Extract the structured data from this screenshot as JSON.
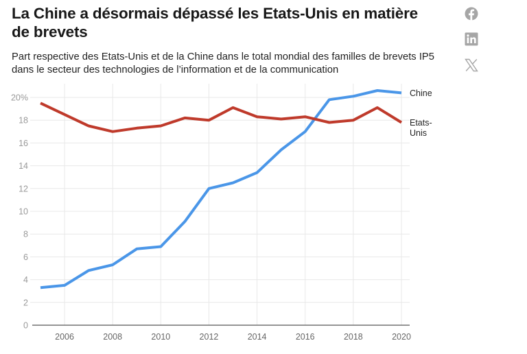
{
  "header": {
    "title": "La Chine a désormais dépassé les Etats-Unis en matière de brevets",
    "subtitle": "Part respective des Etats-Unis et de la Chine dans le total mondial des familles de brevets IP5 dans le secteur des technologies de l’information et de la communication"
  },
  "share": {
    "icons": [
      "facebook-icon",
      "linkedin-icon",
      "x-icon"
    ],
    "color": "#a6a6a6"
  },
  "chart_data": {
    "type": "line",
    "title": "La Chine a désormais dépassé les Etats-Unis en matière de brevets",
    "subtitle": "Part respective des Etats-Unis et de la Chine dans le total mondial des familles de brevets IP5 dans le secteur des technologies de l’information et de la communication",
    "xlabel": "",
    "ylabel": "",
    "x": [
      2005,
      2006,
      2007,
      2008,
      2009,
      2010,
      2011,
      2012,
      2013,
      2014,
      2015,
      2016,
      2017,
      2018,
      2019,
      2020
    ],
    "xlim": [
      2005,
      2020
    ],
    "ylim": [
      0,
      20
    ],
    "x_ticks": [
      2006,
      2008,
      2010,
      2012,
      2014,
      2016,
      2018,
      2020
    ],
    "x_tick_labels": [
      "2006",
      "2008",
      "2010",
      "2012",
      "2014",
      "2016",
      "2018",
      "2020"
    ],
    "y_ticks": [
      0,
      2,
      4,
      6,
      8,
      10,
      12,
      14,
      16,
      18,
      20
    ],
    "y_tick_labels": [
      "0",
      "2",
      "4",
      "6",
      "8",
      "10",
      "12",
      "14",
      "16",
      "18",
      "20%"
    ],
    "grid": true,
    "legend": "direct labels at right end of lines",
    "series": [
      {
        "name": "Chine",
        "label_lines": [
          "Chine"
        ],
        "color": "#4a96e8",
        "values": [
          3.3,
          3.5,
          4.8,
          5.3,
          6.7,
          6.9,
          9.1,
          12.0,
          12.5,
          13.4,
          15.4,
          17.0,
          19.8,
          20.1,
          20.6,
          20.4
        ]
      },
      {
        "name": "Etats-Unis",
        "label_lines": [
          "Etats-",
          "Unis"
        ],
        "color": "#bf3a2b",
        "values": [
          19.5,
          18.5,
          17.5,
          17.0,
          17.3,
          17.5,
          18.2,
          18.0,
          19.1,
          18.3,
          18.1,
          18.3,
          17.8,
          18.0,
          19.1,
          17.8
        ]
      }
    ]
  }
}
